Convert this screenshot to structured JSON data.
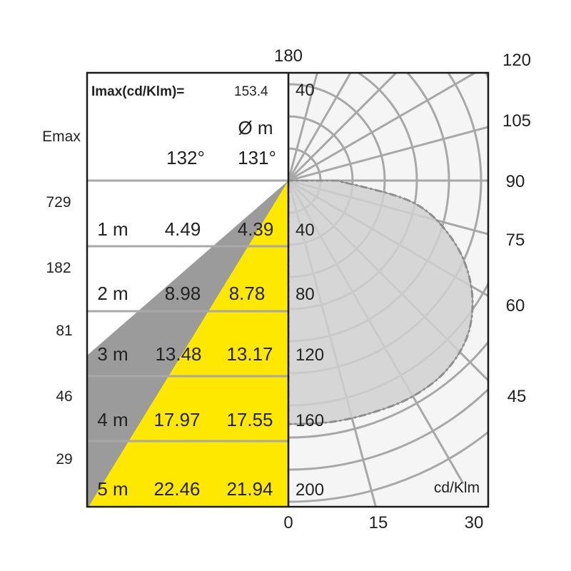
{
  "chart_data": {
    "type": "polar-luminaire",
    "imax_label": "Imax(cd/Klm)=",
    "imax_value": "153.4",
    "diameter_header": "Ø m",
    "emax_label": "Emax",
    "beam_angles": [
      "132°",
      "131°"
    ],
    "unit_label": "cd/Klm",
    "top_angle_label": "180",
    "angle_labels": [
      "120",
      "105",
      "90",
      "75",
      "60",
      "45"
    ],
    "bottom_scale": [
      "0",
      "15",
      "30"
    ],
    "radial_labels": [
      "40",
      "40",
      "80",
      "120",
      "160",
      "200"
    ],
    "rows": [
      {
        "distance": "1 m",
        "emax": "729",
        "d1": "4.49",
        "d2": "4.39"
      },
      {
        "distance": "2 m",
        "emax": "182",
        "d1": "8.98",
        "d2": "8.78"
      },
      {
        "distance": "3 m",
        "emax": "81",
        "d1": "13.48",
        "d2": "13.17"
      },
      {
        "distance": "4 m",
        "emax": "46",
        "d1": "17.97",
        "d2": "17.55"
      },
      {
        "distance": "5 m",
        "emax": "29",
        "d1": "22.46",
        "d2": "21.94"
      }
    ],
    "curve_scale_max": 200,
    "intensity_curve": [
      {
        "angle": 0,
        "value": 150
      },
      {
        "angle": 10,
        "value": 151
      },
      {
        "angle": 20,
        "value": 152
      },
      {
        "angle": 30,
        "value": 153.4
      },
      {
        "angle": 40,
        "value": 152
      },
      {
        "angle": 50,
        "value": 145
      },
      {
        "angle": 60,
        "value": 130
      },
      {
        "angle": 70,
        "value": 108
      },
      {
        "angle": 80,
        "value": 78
      },
      {
        "angle": 90,
        "value": 30
      }
    ],
    "colors": {
      "beam_fill": "#FFE800",
      "beam_edge": "#9B9B9B",
      "grid": "#A8A8A8",
      "curve_fill": "#D0D0D0",
      "curve_line": "#8E8E8E",
      "polar_bg": "#F5F5F5"
    }
  }
}
